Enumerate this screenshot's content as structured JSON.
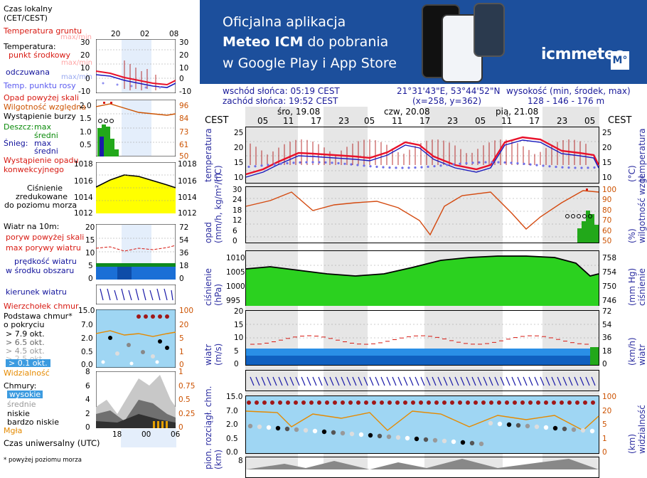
{
  "left_legend": {
    "time_local": "Czas lokalny\n(CET/CEST)",
    "time_ticks_top": [
      "20",
      "02",
      "08"
    ],
    "ground_temp": "Temperatura gruntu",
    "ground_temp_sub": "max/min",
    "temperature": "Temperatura:",
    "mid_point": "punkt środkowy",
    "max_min": "max/min",
    "felt": "odczuwana",
    "felt_max_min": "max/min",
    "dew_point": "Temp. punktu rosy",
    "temp_ticks": [
      "30",
      "20",
      "10",
      "0",
      "-10"
    ],
    "precip_above": "Opad powyżej skali",
    "humidity": "Wilgotność względna",
    "storm": "Wystąpienie burzy",
    "rain": "Deszcz:",
    "rain_max": "max",
    "rain_mid": "średni",
    "snow": "Śnieg:",
    "snow_max": "max",
    "snow_mid": "średni",
    "conv": "Wystąpienie opadu",
    "conv2": "konwekcyjnego",
    "precip_ticks": [
      "2.0",
      "1.5",
      "1.0",
      "0.5"
    ],
    "hum_ticks": [
      "96",
      "84",
      "73",
      "61",
      "50"
    ],
    "pressure_ticks": [
      "1018",
      "1016",
      "1014",
      "1012"
    ],
    "pressure": "Ciśnienie",
    "pressure2": "zredukowane",
    "pressure3": "do poziomu morza",
    "wind_at": "Wiatr na 10m:",
    "gust_above": "poryw powyżej skali",
    "gust_max": "max porywy wiatru",
    "wind_speed": "prędkość wiatru",
    "wind_speed2": "w środku obszaru",
    "wind_ticks": [
      "20",
      "15",
      "10",
      "5",
      "0"
    ],
    "wind_ticks_r": [
      "72",
      "54",
      "36",
      "18",
      "0"
    ],
    "wind_dir": "kierunek wiatru",
    "cloud_top": "Wierzchołek chmur",
    "cloud_base": "Podstawa chmur*",
    "cloud_cover": "o pokryciu",
    "oct79": "> 7.9 okt.",
    "oct65": "> 6.5 okt.",
    "oct45": "> 4.5 okt.",
    "oct25": "> 2.5 okt.",
    "oct01": "> 0.1 okt.",
    "visibility": "Widzialność",
    "cb_ticks": [
      "15.0",
      "7.0",
      "2.0",
      "0.5",
      "0.0"
    ],
    "vis_ticks": [
      "100",
      "20",
      "5",
      "1",
      "0"
    ],
    "clouds": "Chmury:",
    "high": "wysokie",
    "mid": "średnie",
    "low": "niskie",
    "vlow": "bardzo niskie",
    "fog": "Mgła",
    "cloud_ticks": [
      "8",
      "6",
      "4",
      "2",
      "0"
    ],
    "cloud_ticks_r": [
      "1",
      "0.75",
      "0.5",
      "0.25",
      "0"
    ],
    "utc": "Czas uniwersalny (UTC)",
    "utc_ticks": [
      "18",
      "00",
      "06"
    ],
    "footnote": "* powyżej poziomu morza"
  },
  "banner": {
    "line1": "Oficjalna aplikacja",
    "line2a": "Meteo ICM",
    "line2b": " do pobrania",
    "line3": "w Google Play i App Store",
    "logo": "icmmeteo",
    "badge": "M°"
  },
  "info": {
    "sunrise": "wschód słońca: 05:19 CEST",
    "sunset": "zachód słońca: 19:52 CEST",
    "coords": "21°31'43\"E, 53°44'52\"N",
    "grid": "(x=258,  y=362)",
    "alt_label": "wysokość (min, środek, max)",
    "alt_values": "128 - 146 - 176 m"
  },
  "timeline": {
    "tz": "CEST",
    "days": [
      "śro, 19.08",
      "czw, 20.08",
      "pią, 21.08"
    ],
    "hours": [
      "05",
      "11",
      "17",
      "23",
      "05",
      "11",
      "17",
      "23",
      "05",
      "11",
      "17",
      "23",
      "05"
    ]
  },
  "panels": {
    "temp": {
      "label_l": "temperatura\n(°C)",
      "label_r": "(°C)\ntemperatura",
      "ticks": [
        "25",
        "20",
        "15",
        "10"
      ]
    },
    "precip": {
      "label_l": "opad\n(mm/h, kg/m²/h)",
      "label_r": "(%)\nwilgotność wzgl.",
      "ticks": [
        "30",
        "24",
        "18",
        "12",
        "6",
        "0"
      ],
      "ticks_r": [
        "100",
        "90",
        "80",
        "70",
        "60",
        "50"
      ]
    },
    "press": {
      "label_l": "ciśnienie\n(hPa)",
      "label_r": "(mm Hg)\nciśnienie",
      "ticks": [
        "1010",
        "1005",
        "1000",
        "995"
      ],
      "ticks_r": [
        "758",
        "754",
        "750",
        "746"
      ]
    },
    "wind": {
      "label_l": "wiatr\n(m/s)",
      "label_r": "(km/h)\nwiatr",
      "ticks": [
        "20",
        "15",
        "10",
        "5",
        "0"
      ],
      "ticks_r": [
        "72",
        "54",
        "36",
        "18",
        "0"
      ]
    },
    "cloud": {
      "label_l": "pion. rozciągł. chm.\n(km)",
      "label_r": "(km)\nwidzialność",
      "ticks": [
        "15.0",
        "7.0",
        "2.0",
        "0.5",
        "0.0"
      ],
      "ticks_r": [
        "100",
        "20",
        "5",
        "1",
        "0"
      ]
    },
    "bottom": {
      "ticks": [
        "8"
      ]
    }
  },
  "colors": {
    "banner": "#1c4f9c",
    "temp_line": "#e8102a",
    "press_fill": "#22c11a",
    "wind_fill": "#1b6fd6",
    "sky": "#9fd6f3"
  }
}
